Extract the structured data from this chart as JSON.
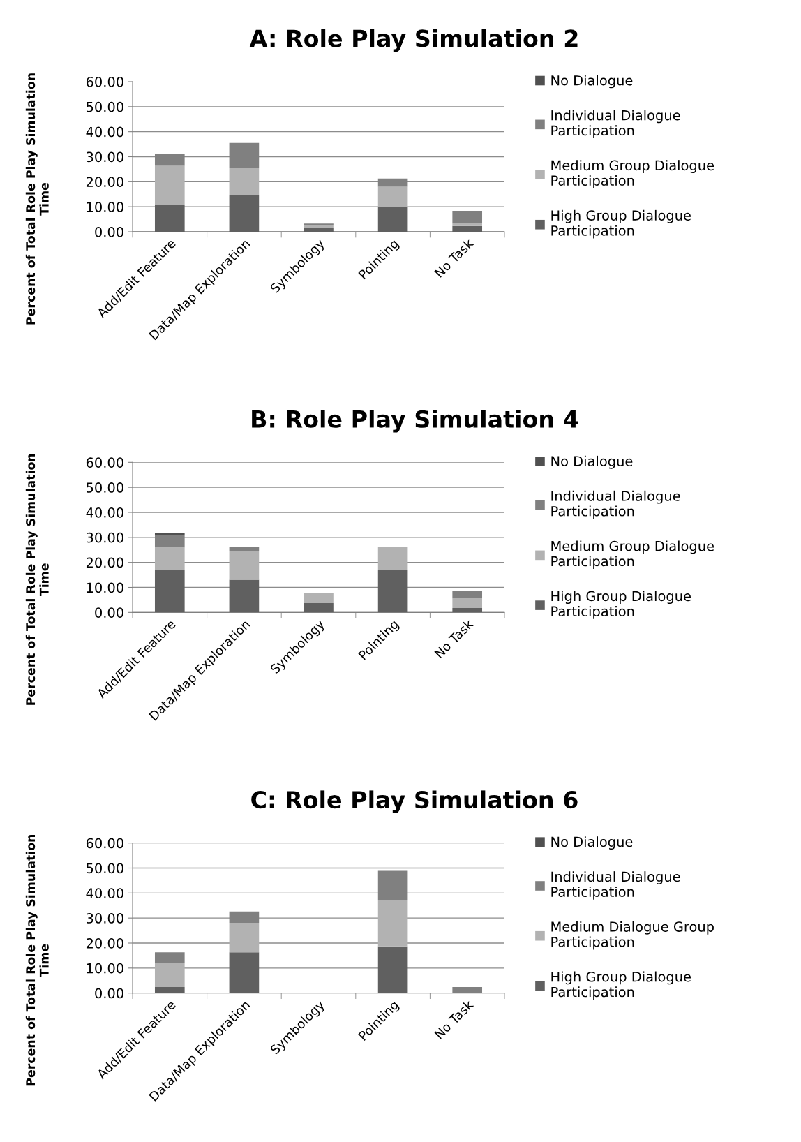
{
  "chart_data": [
    {
      "type": "bar",
      "stacked": true,
      "title": "A: Role Play Simulation 2",
      "ylabel": "Percent of Total Role Play Simulation Time",
      "categories": [
        "Add/Edit Feature",
        "Data/Map Exploration",
        "Symbology",
        "Pointing",
        "No Task"
      ],
      "ylim": [
        0,
        60
      ],
      "yticks": [
        {
          "value": 0,
          "label": "0.00"
        },
        {
          "value": 10,
          "label": "10.00"
        },
        {
          "value": 20,
          "label": "20.00"
        },
        {
          "value": 30,
          "label": "30.00"
        },
        {
          "value": 40,
          "label": "40.00"
        },
        {
          "value": 50,
          "label": "50.00"
        },
        {
          "value": 60,
          "label": "60.00"
        }
      ],
      "grid": "y",
      "legend": "right",
      "series": [
        {
          "name": "High Group Dialogue Participation",
          "color": "#606060",
          "values": [
            10.7,
            14.5,
            1.6,
            10.0,
            2.3
          ]
        },
        {
          "name": "Medium Group Dialogue Participation",
          "color": "#b2b2b2",
          "values": [
            15.7,
            10.9,
            1.2,
            8.0,
            1.0
          ]
        },
        {
          "name": "Individual Dialogue Participation",
          "color": "#808080",
          "values": [
            4.7,
            10.1,
            0.5,
            3.3,
            5.1
          ]
        },
        {
          "name": "No Dialogue",
          "color": "#505050",
          "values": [
            0,
            0,
            0,
            0,
            0
          ]
        }
      ]
    },
    {
      "type": "bar",
      "stacked": true,
      "title": "B: Role Play Simulation 4",
      "ylabel": "Percent of Total Role Play Simulation Time",
      "categories": [
        "Add/Edit Feature",
        "Data/Map Exploration",
        "Symbology",
        "Pointing",
        "No Task"
      ],
      "ylim": [
        0,
        60
      ],
      "yticks": [
        {
          "value": 0,
          "label": "0.00"
        },
        {
          "value": 10,
          "label": "10.00"
        },
        {
          "value": 20,
          "label": "20.00"
        },
        {
          "value": 30,
          "label": "30.00"
        },
        {
          "value": 40,
          "label": "40.00"
        },
        {
          "value": 50,
          "label": "50.00"
        },
        {
          "value": 60,
          "label": "60.00"
        }
      ],
      "grid": "y",
      "legend": "right",
      "series": [
        {
          "name": "High Group Dialogue Participation",
          "color": "#606060",
          "values": [
            17.0,
            13.1,
            3.7,
            17.0,
            1.8
          ]
        },
        {
          "name": "Medium Group Dialogue Participation",
          "color": "#b2b2b2",
          "values": [
            9.0,
            11.5,
            3.9,
            9.1,
            3.8
          ]
        },
        {
          "name": "Individual Dialogue Participation",
          "color": "#808080",
          "values": [
            5.0,
            1.5,
            0,
            0,
            3.0
          ]
        },
        {
          "name": "No Dialogue",
          "color": "#505050",
          "values": [
            0.9,
            0,
            0,
            0,
            0
          ]
        }
      ]
    },
    {
      "type": "bar",
      "stacked": true,
      "title": "C: Role Play Simulation 6",
      "ylabel": "Percent of Total Role Play Simulation Time",
      "categories": [
        "Add/Edit Feature",
        "Data/Map Exploration",
        "Symbology",
        "Pointing",
        "No Task"
      ],
      "ylim": [
        0,
        60
      ],
      "yticks": [
        {
          "value": 0,
          "label": "0.00"
        },
        {
          "value": 10,
          "label": "10.00"
        },
        {
          "value": 20,
          "label": "20.00"
        },
        {
          "value": 30,
          "label": "30.00"
        },
        {
          "value": 40,
          "label": "40.00"
        },
        {
          "value": 50,
          "label": "50.00"
        },
        {
          "value": 60,
          "label": "60.00"
        }
      ],
      "grid": "y",
      "legend": "right",
      "series": [
        {
          "name": "High Group Dialogue Participation",
          "color": "#606060",
          "values": [
            2.4,
            16.3,
            0,
            18.7,
            0
          ]
        },
        {
          "name": "Medium Dialogue Group Participation",
          "color": "#b2b2b2",
          "values": [
            9.5,
            11.8,
            0,
            18.4,
            0
          ]
        },
        {
          "name": "Individual Dialogue Participation",
          "color": "#808080",
          "values": [
            4.4,
            4.5,
            0,
            11.8,
            2.4
          ]
        },
        {
          "name": "No Dialogue",
          "color": "#505050",
          "values": [
            0,
            0,
            0,
            0,
            0
          ]
        }
      ]
    }
  ]
}
